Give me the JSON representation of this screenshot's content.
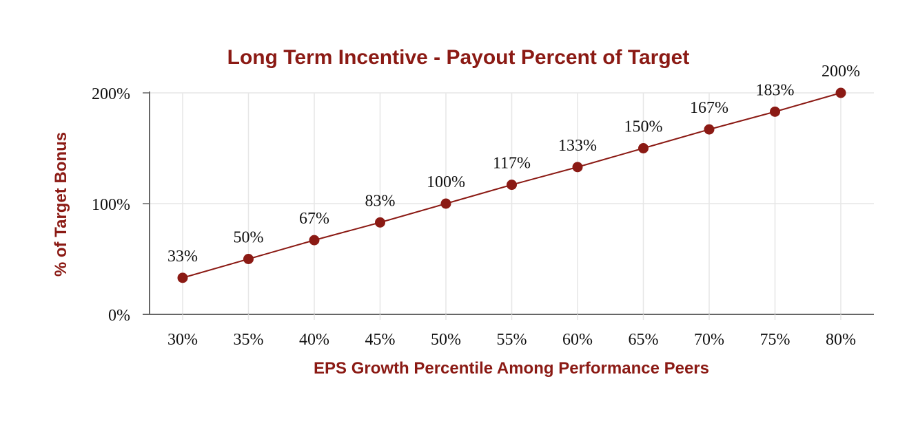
{
  "chart_data": {
    "type": "line",
    "title": "Long Term Incentive - Payout Percent of Target",
    "xlabel": "EPS Growth Percentile Among Performance Peers",
    "ylabel": "% of Target Bonus",
    "x": [
      30,
      35,
      40,
      45,
      50,
      55,
      60,
      65,
      70,
      75,
      80
    ],
    "x_tick_labels": [
      "30%",
      "35%",
      "40%",
      "45%",
      "50%",
      "55%",
      "60%",
      "65%",
      "70%",
      "75%",
      "80%"
    ],
    "values": [
      33,
      50,
      67,
      83,
      100,
      117,
      133,
      150,
      167,
      183,
      200
    ],
    "data_labels": [
      "33%",
      "50%",
      "67%",
      "83%",
      "100%",
      "117%",
      "133%",
      "150%",
      "167%",
      "183%",
      "200%"
    ],
    "y_ticks": [
      0,
      100,
      200
    ],
    "y_tick_labels": [
      "0%",
      "100%",
      "200%"
    ],
    "ylim": [
      0,
      200
    ],
    "grid": true,
    "legend": "none",
    "colors": {
      "series": "#8b1a14",
      "title": "#8b1a14",
      "grid": "#e6e6e6",
      "axis": "#666666"
    }
  }
}
